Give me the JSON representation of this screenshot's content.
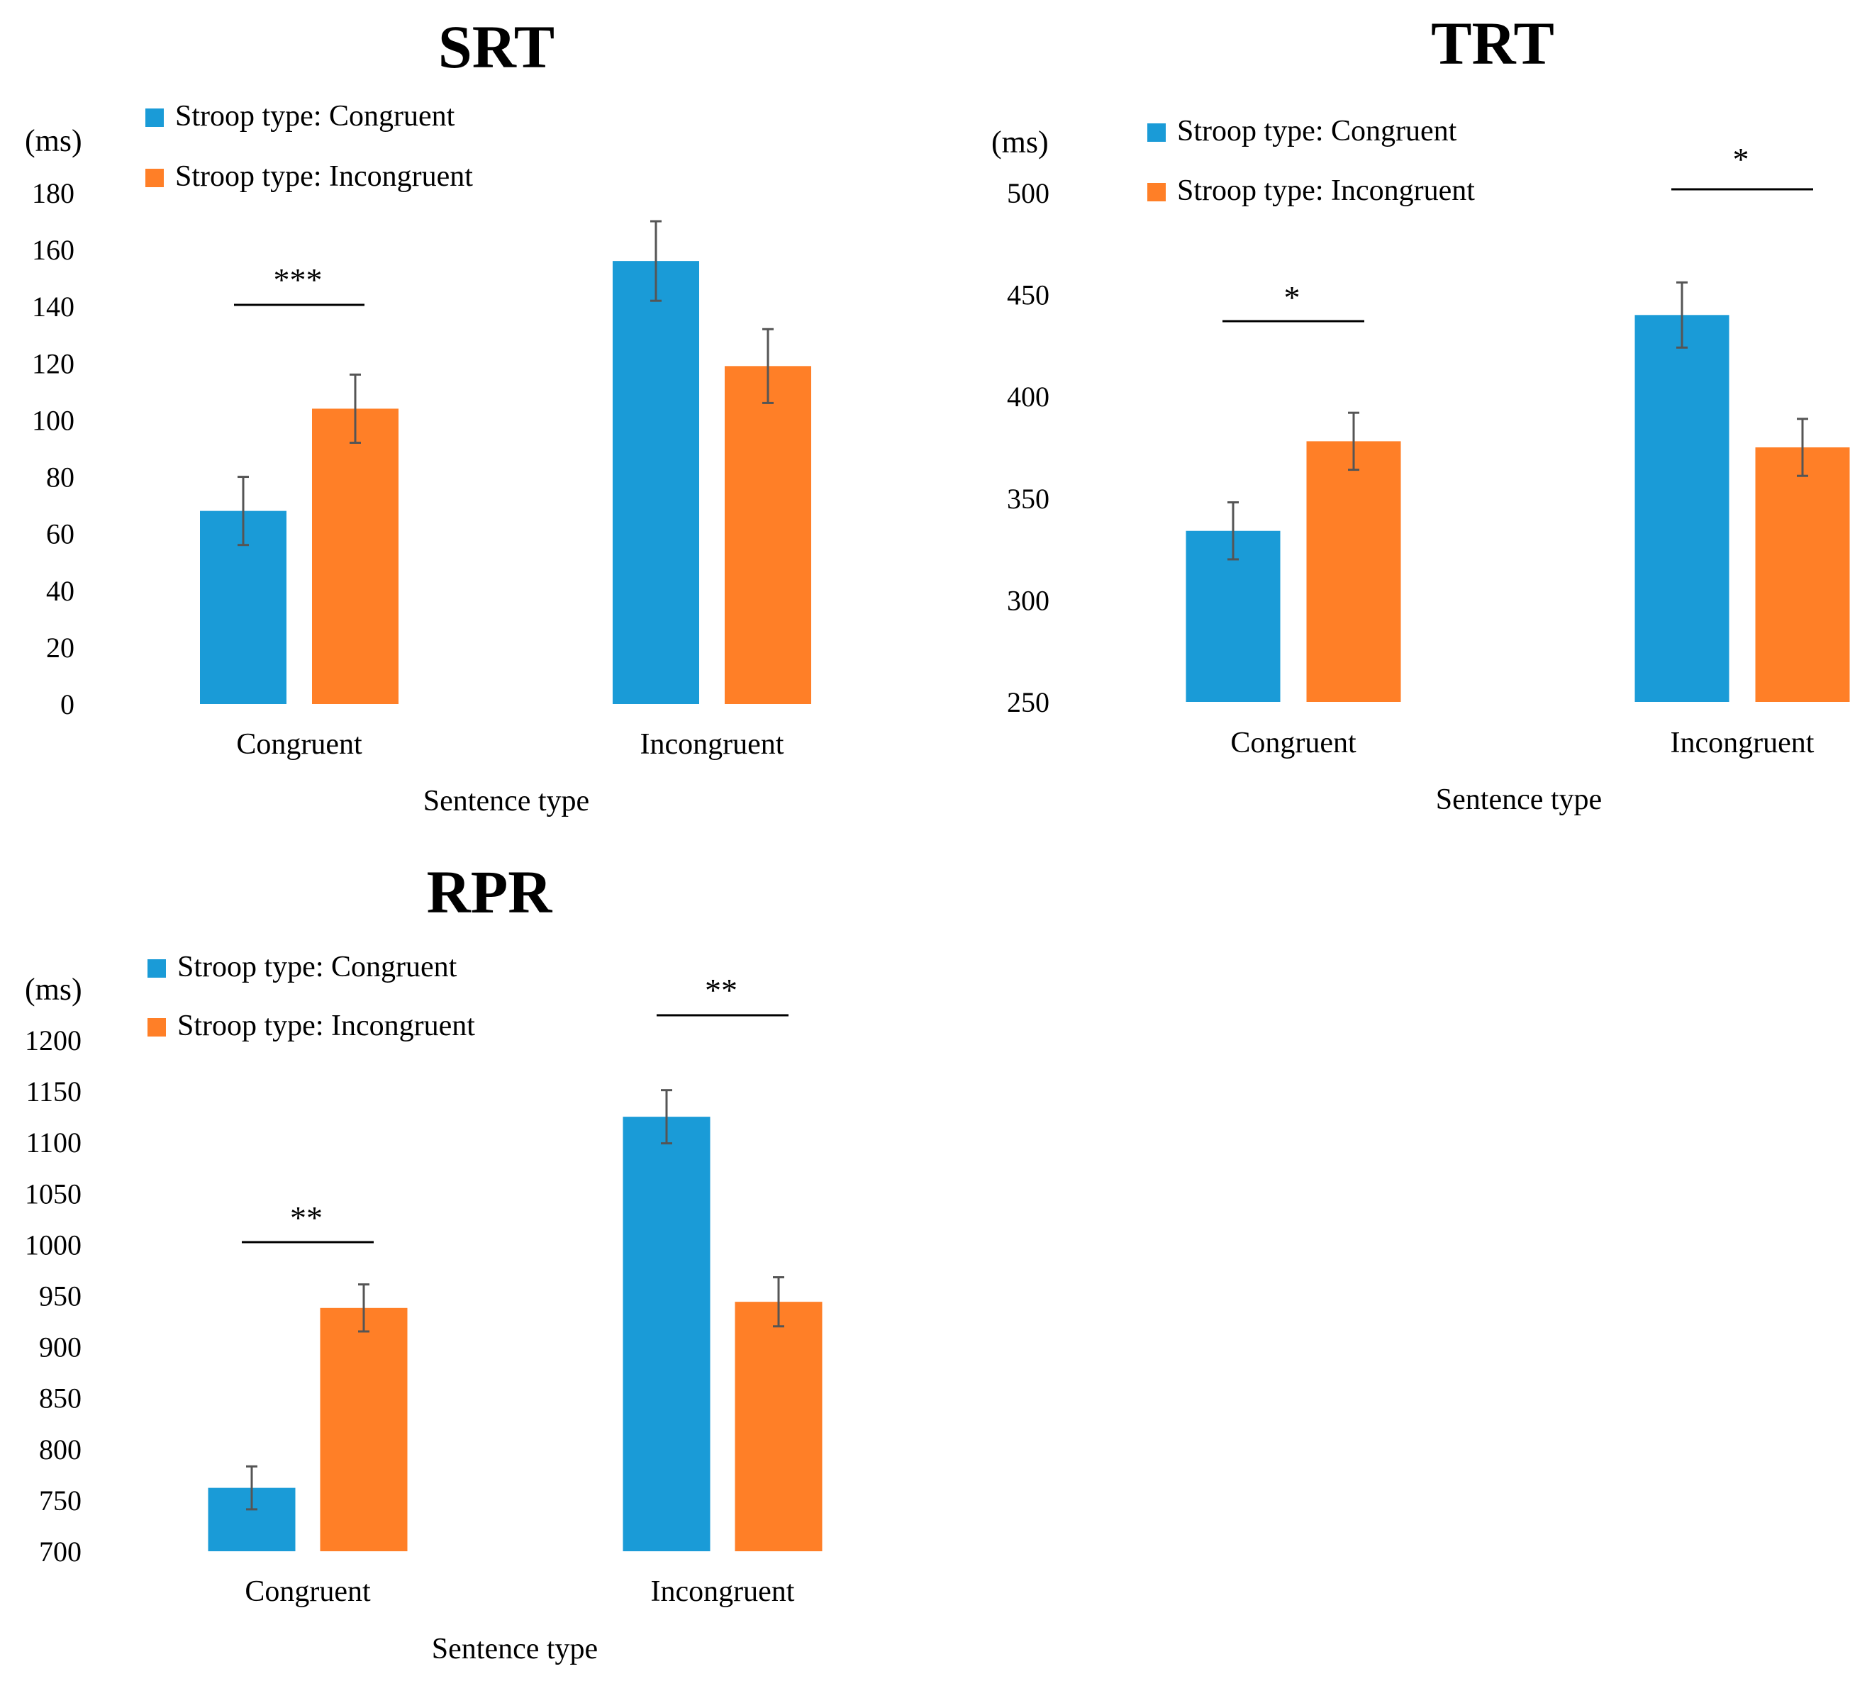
{
  "chart_data": [
    {
      "type": "bar",
      "title": "SRT",
      "ylabel": "(ms)",
      "xlabel": "Sentence type",
      "categories": [
        "Congruent",
        "Incongruent"
      ],
      "ylim": [
        0,
        180
      ],
      "yticks": [
        "0",
        "20",
        "40",
        "60",
        "80",
        "100",
        "120",
        "140",
        "160",
        "180"
      ],
      "series": [
        {
          "name": "Stroop type: Congruent",
          "color": "#1A9BD7",
          "values": [
            68,
            156
          ],
          "errors": [
            12,
            14
          ]
        },
        {
          "name": "Stroop type: Incongruent",
          "color": "#FF7F27",
          "values": [
            104,
            119
          ],
          "errors": [
            12,
            13
          ]
        }
      ],
      "significance": [
        {
          "category": 0,
          "label": "***"
        }
      ],
      "legend": "top-left"
    },
    {
      "type": "bar",
      "title": "TRT",
      "ylabel": "(ms)",
      "xlabel": "Sentence type",
      "categories": [
        "Congruent",
        "Incongruent"
      ],
      "ylim": [
        250,
        500
      ],
      "yticks": [
        "250",
        "300",
        "350",
        "400",
        "450",
        "500"
      ],
      "series": [
        {
          "name": "Stroop type: Congruent",
          "color": "#1A9BD7",
          "values": [
            334,
            440
          ],
          "errors": [
            14,
            16
          ]
        },
        {
          "name": "Stroop type: Incongruent",
          "color": "#FF7F27",
          "values": [
            378,
            375
          ],
          "errors": [
            14,
            14
          ]
        }
      ],
      "significance": [
        {
          "category": 0,
          "label": "*"
        },
        {
          "category": 1,
          "label": "*"
        }
      ],
      "legend": "top-left"
    },
    {
      "type": "bar",
      "title": "RPR",
      "ylabel": "(ms)",
      "xlabel": "Sentence type",
      "categories": [
        "Congruent",
        "Incongruent"
      ],
      "ylim": [
        700,
        1200
      ],
      "yticks": [
        "700",
        "750",
        "800",
        "850",
        "900",
        "950",
        "1000",
        "1050",
        "1100",
        "1150",
        "1200"
      ],
      "series": [
        {
          "name": "Stroop type: Congruent",
          "color": "#1A9BD7",
          "values": [
            762,
            1125
          ],
          "errors": [
            21,
            26
          ]
        },
        {
          "name": "Stroop type: Incongruent",
          "color": "#FF7F27",
          "values": [
            938,
            944
          ],
          "errors": [
            23,
            24
          ]
        }
      ],
      "significance": [
        {
          "category": 0,
          "label": "**"
        },
        {
          "category": 1,
          "label": "**"
        }
      ],
      "legend": "top-left"
    }
  ]
}
